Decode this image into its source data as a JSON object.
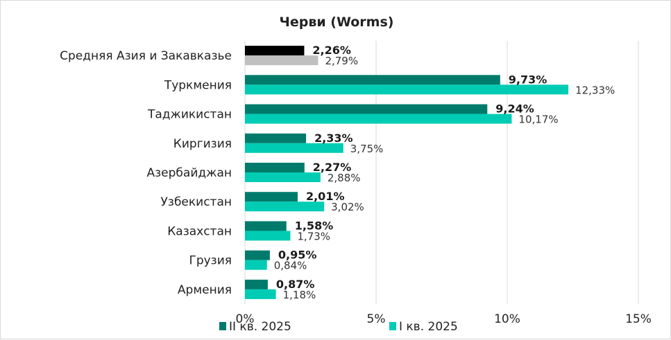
{
  "chart_data": {
    "type": "bar",
    "orientation": "horizontal",
    "title": "Черви (Worms)",
    "categories": [
      "Средняя Азия и Закавказье",
      "Туркмения",
      "Таджикистан",
      "Киргизия",
      "Азербайджан",
      "Узбекистан",
      "Казахстан",
      "Грузия",
      "Армения"
    ],
    "series": [
      {
        "name": "II кв. 2025",
        "values": [
          2.26,
          9.73,
          9.24,
          2.33,
          2.27,
          2.01,
          1.58,
          0.95,
          0.87
        ],
        "labels": [
          "2,26%",
          "9,73%",
          "9,24%",
          "2,33%",
          "2,27%",
          "2,01%",
          "1,58%",
          "0,95%",
          "0,87%"
        ],
        "color": "#007b6b",
        "aggregate_color": "#000000"
      },
      {
        "name": "I кв. 2025",
        "values": [
          2.79,
          12.33,
          10.17,
          3.75,
          2.88,
          3.02,
          1.73,
          0.84,
          1.18
        ],
        "labels": [
          "2,79%",
          "12,33%",
          "10,17%",
          "3,75%",
          "2,88%",
          "3,02%",
          "1,73%",
          "0,84%",
          "1,18%"
        ],
        "color": "#00ccb4",
        "aggregate_color": "#c0c0c0"
      }
    ],
    "xlim": [
      0,
      15
    ],
    "xticks": [
      "0%",
      "5%",
      "10%",
      "15%"
    ],
    "grid": true,
    "legend_position": "bottom"
  }
}
